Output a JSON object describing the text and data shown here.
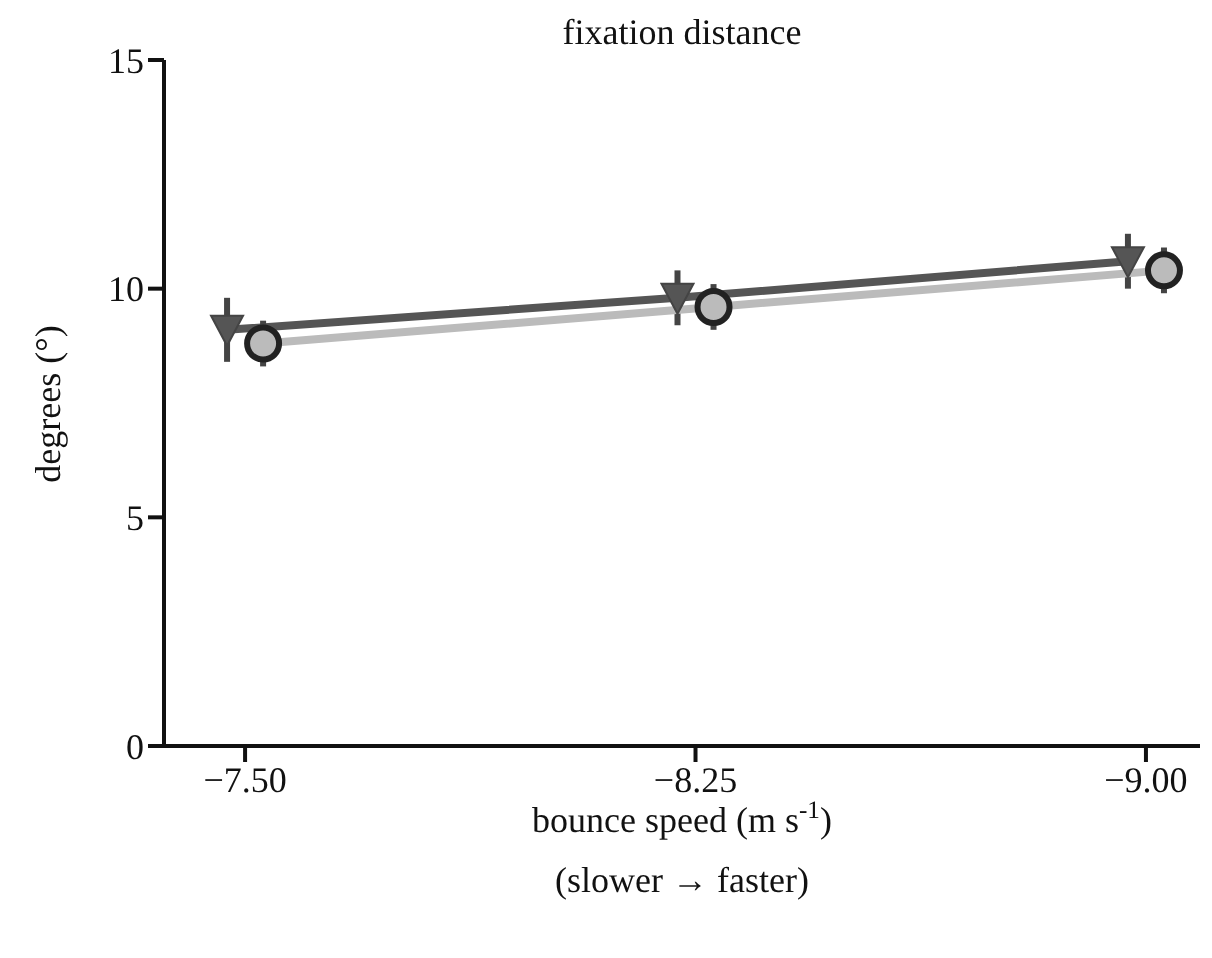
{
  "chart_data": {
    "type": "line",
    "title": "fixation distance",
    "xlabel": "bounce speed (m s$^{-1}$)",
    "ylabel": "degrees (°)",
    "annotations": [
      "(slower → faster)"
    ],
    "categories": [
      "−7.50",
      "−8.25",
      "−9.00"
    ],
    "series": [
      {
        "color": "#555555",
        "marker": "triangle",
        "values": [
          9.1,
          9.8,
          10.6
        ],
        "errors": [
          0.7,
          0.6,
          0.6
        ]
      },
      {
        "color": "#bbbbbb",
        "marker": "circle",
        "values": [
          8.8,
          9.6,
          10.4
        ],
        "errors": [
          0.5,
          0.5,
          0.5
        ]
      }
    ],
    "ylim": [
      0,
      15
    ],
    "yticks": [
      0,
      5,
      10,
      15
    ],
    "grid": false,
    "legend": false
  }
}
